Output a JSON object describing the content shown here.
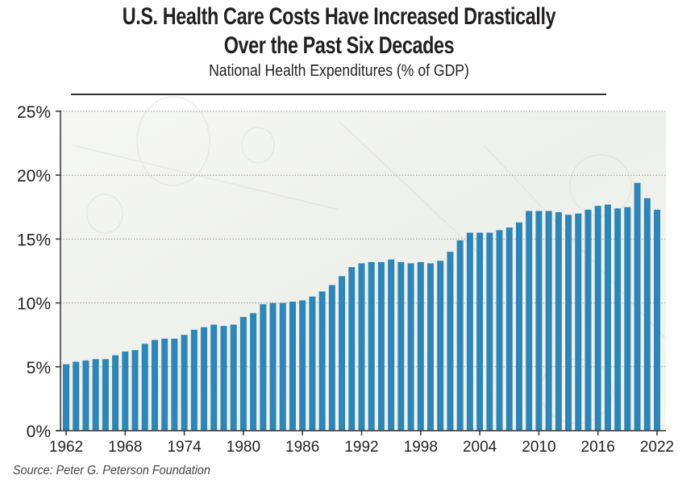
{
  "chart_data": {
    "type": "bar",
    "title": "U.S. Health Care Costs Have Increased Drastically Over the Past Six Decades",
    "title_lines": [
      "U.S. Health Care Costs Have Increased Drastically",
      "Over the Past Six Decades"
    ],
    "subtitle": "National Health Expenditures (% of GDP)",
    "xlabel": "",
    "ylabel": "",
    "source": "Source: Peter G. Peterson Foundation",
    "categories": [
      1962,
      1963,
      1964,
      1965,
      1966,
      1967,
      1968,
      1969,
      1970,
      1971,
      1972,
      1973,
      1974,
      1975,
      1976,
      1977,
      1978,
      1979,
      1980,
      1981,
      1982,
      1983,
      1984,
      1985,
      1986,
      1987,
      1988,
      1989,
      1990,
      1991,
      1992,
      1993,
      1994,
      1995,
      1996,
      1997,
      1998,
      1999,
      2000,
      2001,
      2002,
      2003,
      2004,
      2005,
      2006,
      2007,
      2008,
      2009,
      2010,
      2011,
      2012,
      2013,
      2014,
      2015,
      2016,
      2017,
      2018,
      2019,
      2020,
      2021,
      2022
    ],
    "values": [
      5.2,
      5.4,
      5.5,
      5.6,
      5.6,
      5.9,
      6.2,
      6.3,
      6.8,
      7.1,
      7.2,
      7.2,
      7.5,
      7.9,
      8.1,
      8.3,
      8.2,
      8.3,
      8.9,
      9.2,
      9.9,
      10.0,
      10.0,
      10.1,
      10.2,
      10.5,
      10.9,
      11.4,
      12.1,
      12.8,
      13.1,
      13.2,
      13.2,
      13.4,
      13.2,
      13.1,
      13.2,
      13.1,
      13.3,
      14.0,
      14.9,
      15.5,
      15.5,
      15.5,
      15.7,
      15.9,
      16.3,
      17.2,
      17.2,
      17.2,
      17.1,
      16.9,
      17.0,
      17.3,
      17.6,
      17.7,
      17.4,
      17.5,
      19.4,
      18.2,
      17.3
    ],
    "ylim": [
      0,
      25
    ],
    "yticks": [
      0,
      5,
      10,
      15,
      20,
      25
    ],
    "ytick_labels": [
      "0%",
      "5%",
      "10%",
      "15%",
      "20%",
      "25%"
    ],
    "xticks": [
      1962,
      1968,
      1974,
      1980,
      1986,
      1992,
      1998,
      2004,
      2010,
      2016,
      2022
    ],
    "xtick_labels": [
      "1962",
      "1968",
      "1974",
      "1980",
      "1986",
      "1992",
      "1998",
      "2004",
      "2010",
      "2016",
      "2022"
    ],
    "grid": "horizontal dotted",
    "legend": "none",
    "colors": {
      "bar": "#2e86b8",
      "plot_background": "#f3f4f1",
      "grid": "#9a9a9a",
      "axis": "#333333",
      "text": "#231f20"
    }
  }
}
